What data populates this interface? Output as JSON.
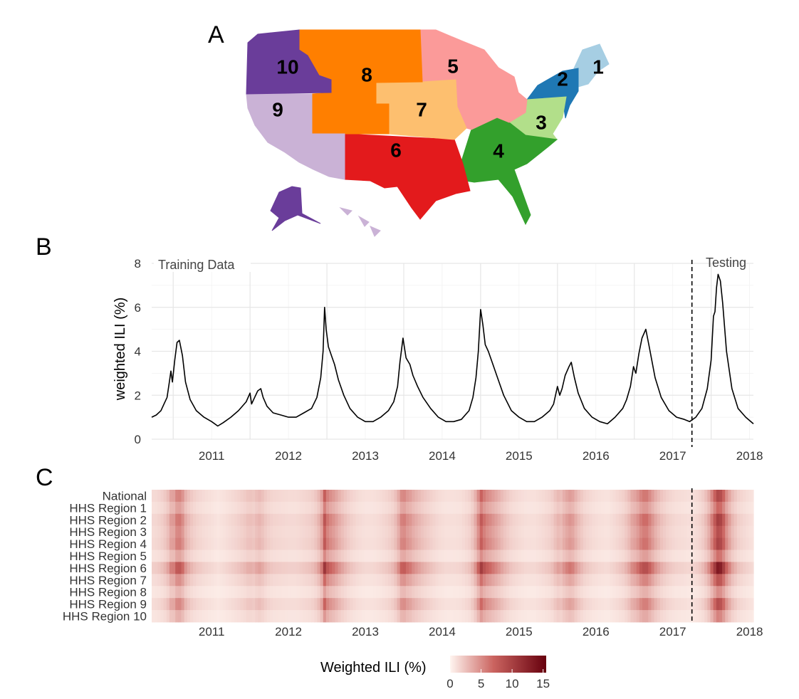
{
  "panels": {
    "a": "A",
    "b": "B",
    "c": "C"
  },
  "map": {
    "regions": [
      {
        "num": "1",
        "color": "#a6cee3"
      },
      {
        "num": "2",
        "color": "#1f78b4"
      },
      {
        "num": "3",
        "color": "#b2df8a"
      },
      {
        "num": "4",
        "color": "#33a02c"
      },
      {
        "num": "5",
        "color": "#fb9a99"
      },
      {
        "num": "6",
        "color": "#e31a1c"
      },
      {
        "num": "7",
        "color": "#fdbf6f"
      },
      {
        "num": "8",
        "color": "#ff7f00"
      },
      {
        "num": "9",
        "color": "#cab2d6"
      },
      {
        "num": "10",
        "color": "#6a3d9a"
      }
    ]
  },
  "chart_data": [
    {
      "type": "line",
      "ylabel": "weighted ILI (%)",
      "xlabel": "",
      "xlim": [
        2010.72,
        2018.55
      ],
      "ylim": [
        0,
        8
      ],
      "x_ticks": [
        "2011",
        "2012",
        "2013",
        "2014",
        "2015",
        "2016",
        "2017",
        "2018"
      ],
      "y_ticks": [
        "0",
        "2",
        "4",
        "6",
        "8"
      ],
      "grid": true,
      "split_x": 2017.75,
      "annotations": {
        "left": "Training Data",
        "right": "Testing"
      },
      "series": [
        {
          "x": [
            2010.72,
            2010.78,
            2010.84,
            2010.88,
            2010.92,
            2010.95,
            2010.97,
            2010.99,
            2011.02,
            2011.05,
            2011.08,
            2011.12,
            2011.16,
            2011.22,
            2011.3,
            2011.4,
            2011.5,
            2011.58,
            2011.65,
            2011.75,
            2011.85,
            2011.95,
            2012.0,
            2012.02,
            2012.06,
            2012.1,
            2012.14,
            2012.17,
            2012.22,
            2012.3,
            2012.4,
            2012.5,
            2012.6,
            2012.7,
            2012.8,
            2012.87,
            2012.92,
            2012.95,
            2012.97,
            2012.99,
            2013.02,
            2013.06,
            2013.1,
            2013.15,
            2013.22,
            2013.3,
            2013.4,
            2013.5,
            2013.6,
            2013.7,
            2013.8,
            2013.87,
            2013.92,
            2013.95,
            2013.99,
            2014.03,
            2014.08,
            2014.12,
            2014.18,
            2014.25,
            2014.35,
            2014.45,
            2014.55,
            2014.65,
            2014.75,
            2014.85,
            2014.9,
            2014.94,
            2014.97,
            2015.0,
            2015.03,
            2015.06,
            2015.1,
            2015.15,
            2015.22,
            2015.3,
            2015.4,
            2015.5,
            2015.6,
            2015.7,
            2015.8,
            2015.9,
            2015.95,
            2016.0,
            2016.03,
            2016.06,
            2016.1,
            2016.15,
            2016.18,
            2016.22,
            2016.27,
            2016.35,
            2016.45,
            2016.55,
            2016.65,
            2016.75,
            2016.85,
            2016.9,
            2016.95,
            2016.99,
            2017.02,
            2017.06,
            2017.1,
            2017.15,
            2017.2,
            2017.27,
            2017.35,
            2017.45,
            2017.55,
            2017.65,
            2017.72,
            2017.8,
            2017.88,
            2017.95,
            2018.0,
            2018.03,
            2018.05,
            2018.07,
            2018.09,
            2018.12,
            2018.15,
            2018.2,
            2018.27,
            2018.35,
            2018.45,
            2018.55
          ],
          "y": [
            1.0,
            1.1,
            1.3,
            1.6,
            1.9,
            2.6,
            3.1,
            2.6,
            3.6,
            4.4,
            4.5,
            3.8,
            2.6,
            1.8,
            1.3,
            1.0,
            0.8,
            0.6,
            0.75,
            1.0,
            1.3,
            1.7,
            2.1,
            1.6,
            1.9,
            2.2,
            2.3,
            1.9,
            1.5,
            1.2,
            1.1,
            1.0,
            1.0,
            1.2,
            1.4,
            1.9,
            2.8,
            4.0,
            6.0,
            5.0,
            4.2,
            3.8,
            3.4,
            2.7,
            2.0,
            1.4,
            1.0,
            0.8,
            0.8,
            1.0,
            1.3,
            1.7,
            2.4,
            3.5,
            4.6,
            3.7,
            3.4,
            2.9,
            2.4,
            1.9,
            1.4,
            1.0,
            0.8,
            0.8,
            0.9,
            1.3,
            1.9,
            2.8,
            4.0,
            5.9,
            5.2,
            4.3,
            4.0,
            3.5,
            2.8,
            2.0,
            1.3,
            1.0,
            0.8,
            0.8,
            1.0,
            1.3,
            1.6,
            2.4,
            2.0,
            2.3,
            2.9,
            3.3,
            3.5,
            2.8,
            2.1,
            1.4,
            1.0,
            0.8,
            0.7,
            1.0,
            1.4,
            1.8,
            2.4,
            3.3,
            3.0,
            3.9,
            4.6,
            5.0,
            4.1,
            2.8,
            1.9,
            1.3,
            1.0,
            0.9,
            0.8,
            1.0,
            1.4,
            2.3,
            3.6,
            5.6,
            5.8,
            6.9,
            7.5,
            7.2,
            6.2,
            4.0,
            2.3,
            1.4,
            1.0,
            0.7
          ]
        }
      ]
    },
    {
      "type": "heatmap",
      "rows": [
        "National",
        "HHS Region 1",
        "HHS Region 2",
        "HHS Region 3",
        "HHS Region 4",
        "HHS Region 5",
        "HHS Region 6",
        "HHS Region 7",
        "HHS Region 8",
        "HHS Region 9",
        "HHS Region 10"
      ],
      "x_ticks": [
        "2011",
        "2012",
        "2013",
        "2014",
        "2015",
        "2016",
        "2017",
        "2018"
      ],
      "xlim": [
        2010.72,
        2018.55
      ],
      "split_x": 2017.75,
      "row_scale": [
        1.0,
        0.75,
        1.1,
        0.95,
        1.05,
        0.7,
        1.45,
        0.9,
        0.55,
        0.95,
        0.6
      ],
      "legend": {
        "title": "Weighted ILI (%)",
        "ticks": [
          "0",
          "5",
          "10",
          "15"
        ],
        "range": [
          0,
          15.5
        ],
        "low_color": "#fff5f0",
        "high_color": "#67000d"
      }
    }
  ]
}
